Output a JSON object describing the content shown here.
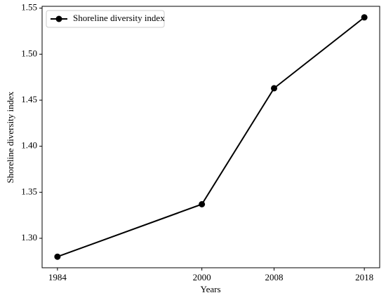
{
  "chart_data": {
    "type": "line",
    "xlabel": "Years",
    "ylabel": "Shoreline diversity index",
    "x": [
      1984,
      2000,
      2008,
      2018
    ],
    "series": [
      {
        "name": "Shoreline diversity index",
        "color": "#000000",
        "values": [
          1.28,
          1.337,
          1.463,
          1.54
        ]
      }
    ],
    "xlim": [
      1982.3,
      2019.7
    ],
    "ylim": [
      1.268,
      1.552
    ],
    "xticks": [
      1984,
      2000,
      2008,
      2018
    ],
    "yticks": [
      {
        "value": 1.3,
        "label": "1.30"
      },
      1.35,
      {
        "value": 1.4,
        "label": "1.40"
      },
      1.45,
      {
        "value": 1.5,
        "label": "1.50"
      },
      1.55
    ],
    "grid": false,
    "legend": "upper left"
  }
}
